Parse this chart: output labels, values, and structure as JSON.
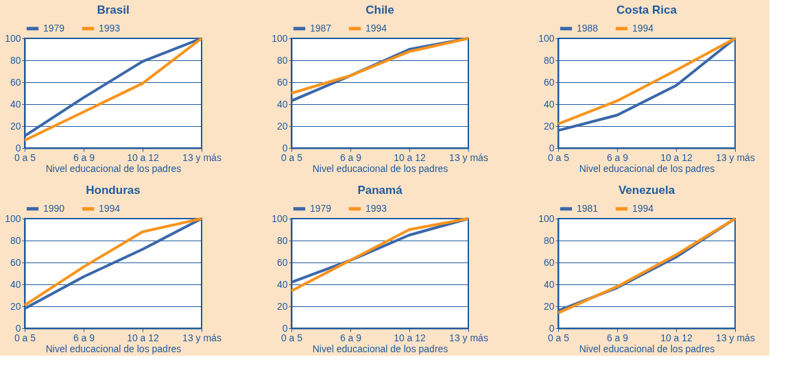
{
  "chart_data": [
    {
      "type": "line",
      "title": "Brasil",
      "xlabel": "Nivel educacional de los padres",
      "categories": [
        "0 a 5",
        "6 a 9",
        "10 a 12",
        "13 y más"
      ],
      "ylim": [
        0,
        100
      ],
      "yticks": [
        0,
        20,
        40,
        60,
        80,
        100
      ],
      "grid": "y",
      "legend": "top left",
      "marker": "none",
      "line_style": "solid",
      "series": [
        {
          "name": "1979",
          "color": "#3a67aa",
          "values": [
            11,
            46,
            79,
            100
          ]
        },
        {
          "name": "1993",
          "color": "#f7941d",
          "values": [
            7,
            33,
            59,
            100
          ]
        }
      ]
    },
    {
      "type": "line",
      "title": "Chile",
      "xlabel": "Nivel educacional de los padres",
      "categories": [
        "0 a 5",
        "6 a 9",
        "10 a 12",
        "13 y más"
      ],
      "ylim": [
        0,
        100
      ],
      "yticks": [
        0,
        20,
        40,
        60,
        80,
        100
      ],
      "grid": "y",
      "legend": "top left",
      "marker": "none",
      "line_style": "solid",
      "series": [
        {
          "name": "1987",
          "color": "#3a67aa",
          "values": [
            43,
            66,
            90,
            100
          ]
        },
        {
          "name": "1994",
          "color": "#f7941d",
          "values": [
            50,
            66,
            88,
            100
          ]
        }
      ]
    },
    {
      "type": "line",
      "title": "Costa Rica",
      "xlabel": "Nivel educacional de los padres",
      "categories": [
        "0 a 5",
        "6 a 9",
        "10 a 12",
        "13 y más"
      ],
      "ylim": [
        0,
        100
      ],
      "yticks": [
        0,
        20,
        40,
        60,
        80,
        100
      ],
      "grid": "y",
      "legend": "top left",
      "marker": "none",
      "line_style": "solid",
      "series": [
        {
          "name": "1988",
          "color": "#3a67aa",
          "values": [
            16,
            30,
            57,
            100
          ]
        },
        {
          "name": "1994",
          "color": "#f7941d",
          "values": [
            22,
            43,
            71,
            100
          ]
        }
      ]
    },
    {
      "type": "line",
      "title": "Honduras",
      "xlabel": "Nivel educacional de los padres",
      "categories": [
        "0 a 5",
        "6 a 9",
        "10 a 12",
        "13 y más"
      ],
      "ylim": [
        0,
        100
      ],
      "yticks": [
        0,
        20,
        40,
        60,
        80,
        100
      ],
      "grid": "y",
      "legend": "top left",
      "marker": "none",
      "line_style": "solid",
      "series": [
        {
          "name": "1990",
          "color": "#3a67aa",
          "values": [
            18,
            47,
            72,
            100
          ]
        },
        {
          "name": "1994",
          "color": "#f7941d",
          "values": [
            21,
            56,
            88,
            100
          ]
        }
      ]
    },
    {
      "type": "line",
      "title": "Panamá",
      "xlabel": "Nivel educacional de los padres",
      "categories": [
        "0 a 5",
        "6 a 9",
        "10 a 12",
        "13 y más"
      ],
      "ylim": [
        0,
        100
      ],
      "yticks": [
        0,
        20,
        40,
        60,
        80,
        100
      ],
      "grid": "y",
      "legend": "top left",
      "marker": "none",
      "line_style": "solid",
      "series": [
        {
          "name": "1979",
          "color": "#3a67aa",
          "values": [
            42,
            62,
            85,
            100
          ]
        },
        {
          "name": "1993",
          "color": "#f7941d",
          "values": [
            34,
            62,
            90,
            100
          ]
        }
      ]
    },
    {
      "type": "line",
      "title": "Venezuela",
      "xlabel": "Nivel educacional de los padres",
      "categories": [
        "0 a 5",
        "6 a 9",
        "10 a 12",
        "13 y más"
      ],
      "ylim": [
        0,
        100
      ],
      "yticks": [
        0,
        20,
        40,
        60,
        80,
        100
      ],
      "grid": "y",
      "legend": "top left",
      "marker": "none",
      "line_style": "solid",
      "series": [
        {
          "name": "1981",
          "color": "#3a67aa",
          "values": [
            16,
            37,
            65,
            100
          ]
        },
        {
          "name": "1994",
          "color": "#f7941d",
          "values": [
            14,
            38,
            67,
            100
          ]
        }
      ]
    }
  ]
}
